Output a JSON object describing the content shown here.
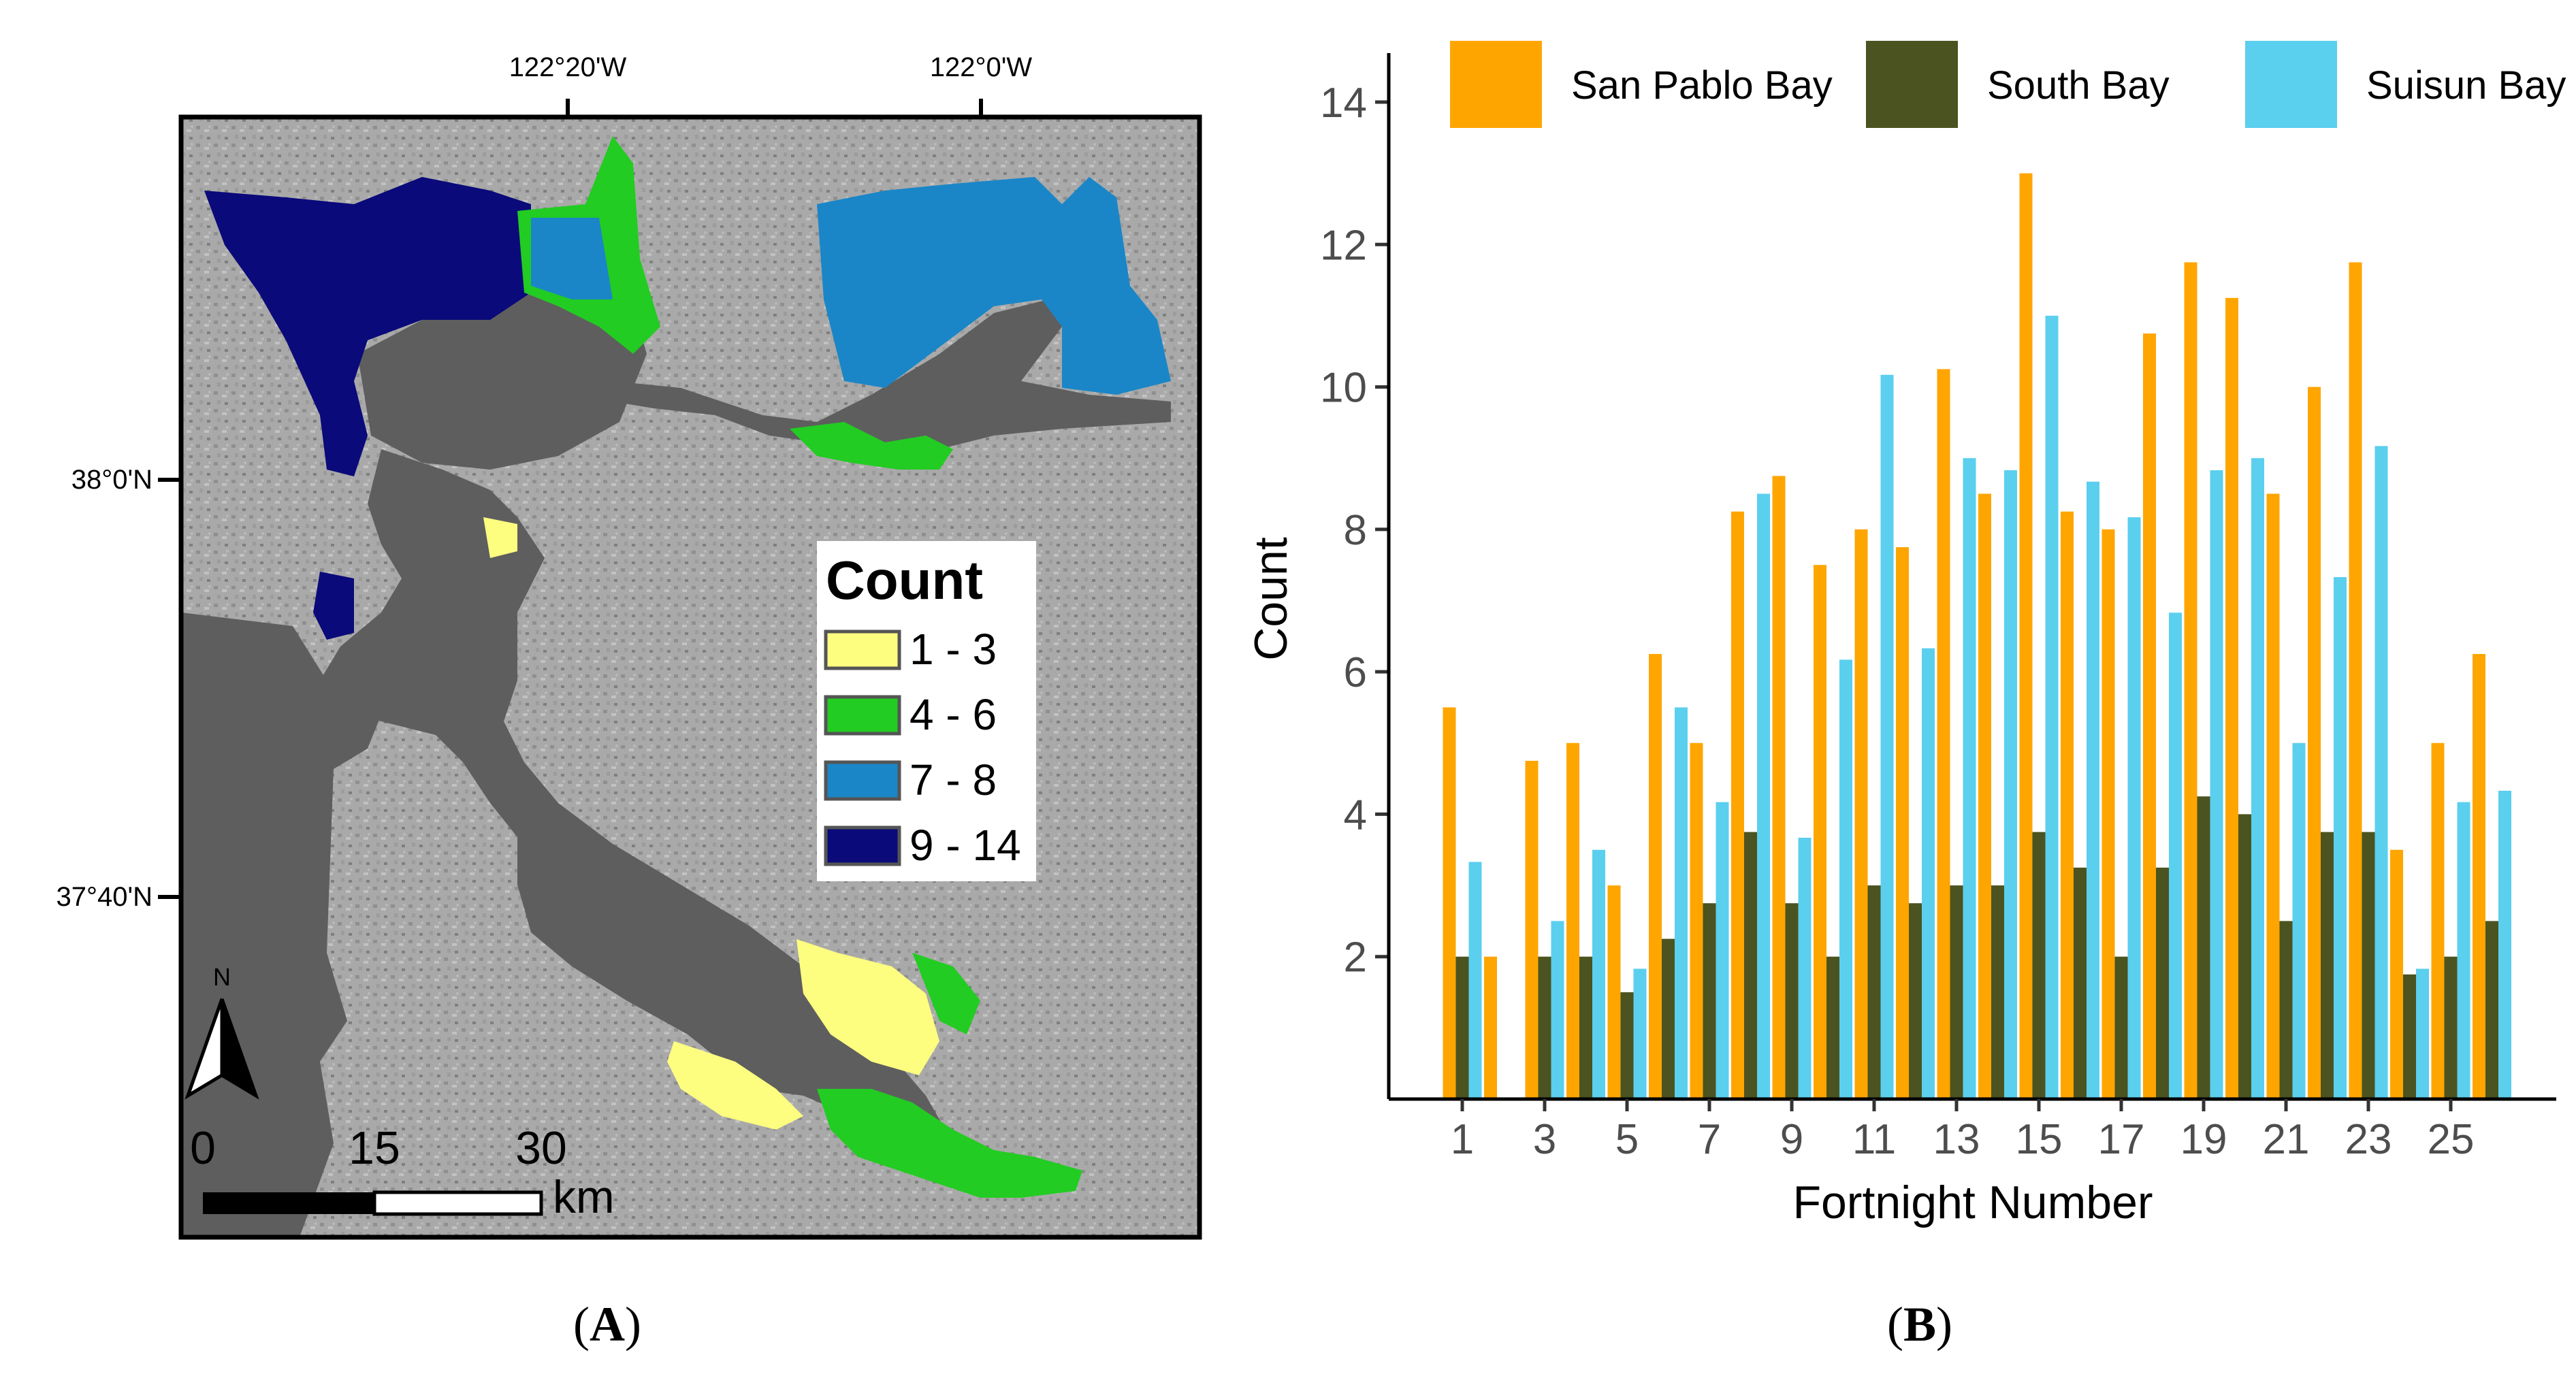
{
  "panel_a": {
    "label": "A",
    "top_ticks": [
      "122°20'W",
      "122°0'W"
    ],
    "left_ticks": [
      "38°0'N",
      "37°40'N"
    ],
    "legend": {
      "title": "Count",
      "items": [
        {
          "label": "1 - 3",
          "color": "#fdfd80"
        },
        {
          "label": "4 - 6",
          "color": "#22cc22"
        },
        {
          "label": "7 - 8",
          "color": "#1a86c7"
        },
        {
          "label": "9 - 14",
          "color": "#0a0a7a"
        }
      ]
    },
    "north_label": "N",
    "scale_labels": [
      "0",
      "15",
      "30"
    ],
    "scale_unit": "km"
  },
  "panel_b": {
    "label": "B"
  },
  "chart_data": {
    "type": "bar",
    "title": "",
    "xlabel": "Fortnight Number",
    "ylabel": "Count",
    "ylim": [
      0,
      14.5
    ],
    "yticks": [
      2,
      4,
      6,
      8,
      10,
      12,
      14
    ],
    "categories": [
      1,
      2,
      3,
      4,
      5,
      6,
      7,
      8,
      9,
      10,
      11,
      12,
      13,
      14,
      15,
      16,
      17,
      18,
      19,
      20,
      21,
      22,
      23,
      24,
      25,
      26
    ],
    "xtick_labels": [
      "1",
      "3",
      "5",
      "7",
      "9",
      "11",
      "13",
      "15",
      "17",
      "19",
      "21",
      "23",
      "25"
    ],
    "legend_position": "top",
    "series": [
      {
        "name": "San Pablo Bay",
        "color": "#ffa500",
        "values": [
          5.5,
          2,
          4.75,
          5,
          3,
          6.25,
          5,
          8.25,
          8.75,
          7.5,
          8,
          7.75,
          10.25,
          8.5,
          13,
          8.25,
          8,
          10.75,
          11.75,
          11.25,
          8.5,
          10,
          11.75,
          3.5,
          5,
          6.25
        ]
      },
      {
        "name": "South Bay",
        "color": "#4b5320",
        "values": [
          2,
          null,
          2,
          2,
          1.5,
          2.25,
          2.75,
          3.75,
          2.75,
          2,
          3,
          2.75,
          3,
          3,
          3.75,
          3.25,
          2,
          3.25,
          4.25,
          4,
          2.5,
          3.75,
          3.75,
          1.75,
          2,
          2.5
        ]
      },
      {
        "name": "Suisun Bay",
        "color": "#5bcfee",
        "values": [
          3.33,
          null,
          2.5,
          3.5,
          1.83,
          5.5,
          4.17,
          8.5,
          3.67,
          6.17,
          10.17,
          6.33,
          9,
          8.83,
          11,
          8.67,
          8.17,
          6.83,
          8.83,
          9,
          5,
          7.33,
          9.17,
          1.83,
          4.17,
          4.33
        ]
      }
    ]
  }
}
